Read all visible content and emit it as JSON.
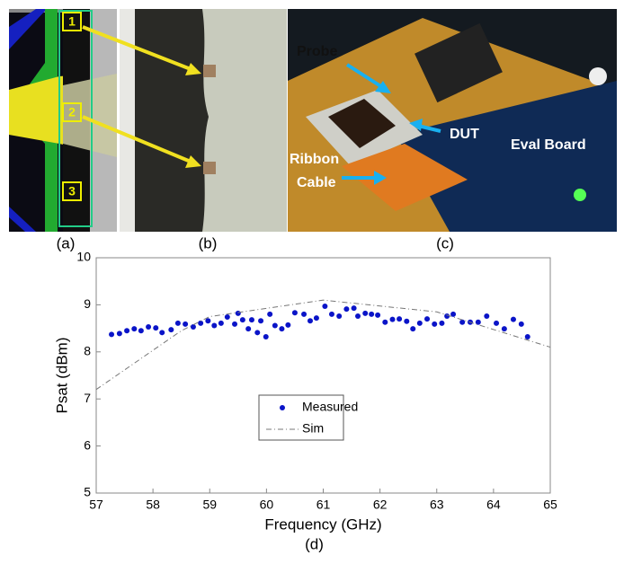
{
  "panels": {
    "labels": [
      "(a)",
      "(b)",
      "(c)"
    ],
    "markers": [
      "1",
      "2",
      "3"
    ],
    "callouts": [
      "Probe",
      "DUT",
      "Ribbon",
      "Cable",
      "Eval Board"
    ]
  },
  "chart_data": {
    "type": "scatter",
    "caption": "(d)",
    "xlabel": "Frequency (GHz)",
    "ylabel": "Psat (dBm)",
    "xlim": [
      57,
      65
    ],
    "ylim": [
      5,
      10
    ],
    "xticks": [
      57,
      58,
      59,
      60,
      61,
      62,
      63,
      64,
      65
    ],
    "yticks": [
      5,
      6,
      7,
      8,
      9,
      10
    ],
    "legend": "center",
    "series": [
      {
        "name": "Measured",
        "color": "#0a14c8",
        "mode": "markers",
        "x": [
          57.27,
          57.41,
          57.54,
          57.67,
          57.79,
          57.92,
          58.05,
          58.16,
          58.32,
          58.44,
          58.57,
          58.71,
          58.84,
          58.97,
          59.08,
          59.2,
          59.31,
          59.44,
          59.5,
          59.58,
          59.68,
          59.74,
          59.84,
          59.9,
          59.99,
          60.06,
          60.15,
          60.27,
          60.38,
          60.5,
          60.66,
          60.77,
          60.88,
          61.03,
          61.15,
          61.28,
          61.41,
          61.54,
          61.61,
          61.74,
          61.85,
          61.96,
          62.09,
          62.22,
          62.34,
          62.47,
          62.58,
          62.7,
          62.83,
          62.96,
          63.09,
          63.18,
          63.29,
          63.45,
          63.59,
          63.73,
          63.88,
          64.05,
          64.19,
          64.35,
          64.49,
          64.6
        ],
        "values": [
          8.37,
          8.39,
          8.45,
          8.49,
          8.45,
          8.53,
          8.51,
          8.41,
          8.47,
          8.61,
          8.59,
          8.53,
          8.61,
          8.66,
          8.56,
          8.61,
          8.74,
          8.59,
          8.82,
          8.68,
          8.49,
          8.68,
          8.41,
          8.66,
          8.32,
          8.8,
          8.56,
          8.49,
          8.57,
          8.83,
          8.8,
          8.66,
          8.72,
          8.97,
          8.8,
          8.76,
          8.91,
          8.93,
          8.76,
          8.82,
          8.8,
          8.78,
          8.63,
          8.69,
          8.7,
          8.65,
          8.49,
          8.61,
          8.7,
          8.59,
          8.61,
          8.76,
          8.8,
          8.63,
          8.63,
          8.63,
          8.76,
          8.61,
          8.49,
          8.69,
          8.59,
          8.32
        ]
      },
      {
        "name": "Sim",
        "color": "#777777",
        "mode": "dashdot",
        "x": [
          57,
          58.5,
          59,
          61,
          63,
          65
        ],
        "values": [
          7.2,
          8.45,
          8.75,
          9.1,
          8.85,
          8.1
        ]
      }
    ]
  }
}
